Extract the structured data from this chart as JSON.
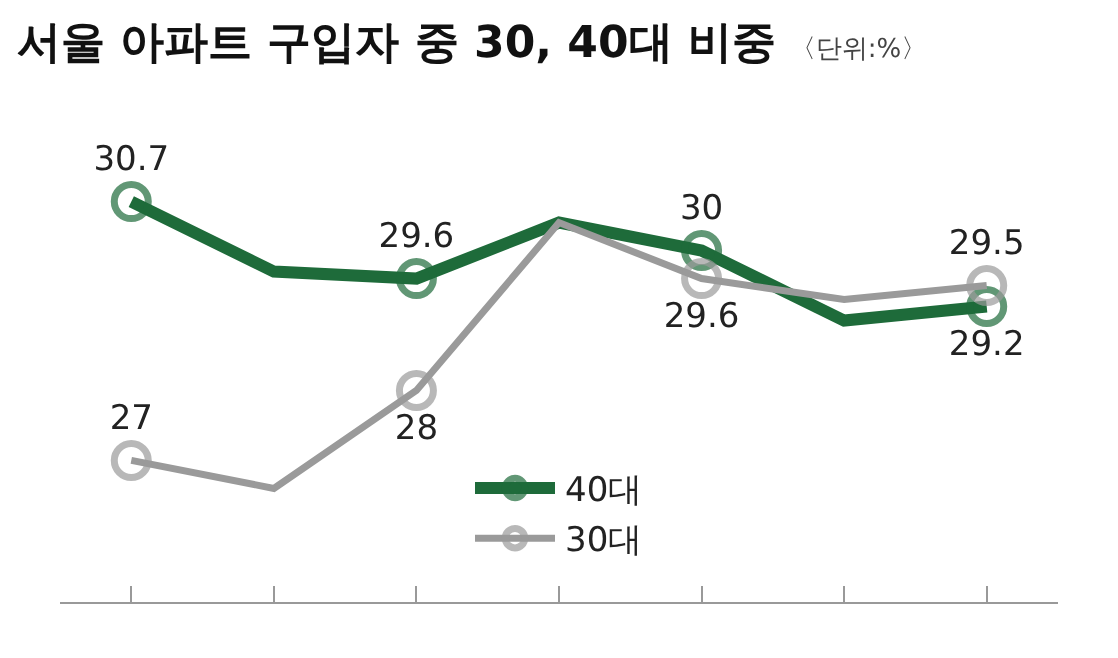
{
  "chart_data": {
    "type": "line",
    "title": "서울 아파트 구입자 중 30, 40대 비중",
    "subtitle": "〈단위:%〉",
    "categories": [
      null,
      null,
      null,
      null,
      null,
      null,
      null
    ],
    "series": [
      {
        "name": "40대",
        "color": "#1e6b3a",
        "values": [
          30.7,
          29.7,
          29.6,
          30.4,
          30,
          29.0,
          29.2
        ],
        "value_labels": [
          "30.7",
          null,
          "29.6",
          null,
          "30",
          null,
          "29.2"
        ]
      },
      {
        "name": "30대",
        "color": "#9a9a9a",
        "values": [
          27,
          26.6,
          28,
          30.4,
          29.6,
          29.3,
          29.5
        ],
        "value_labels": [
          "27",
          null,
          "28",
          null,
          "29.6",
          null,
          "29.5"
        ]
      }
    ],
    "marker": "circle",
    "line_style": "solid",
    "grid": false,
    "legend": "bottom",
    "tick_labels": false
  }
}
